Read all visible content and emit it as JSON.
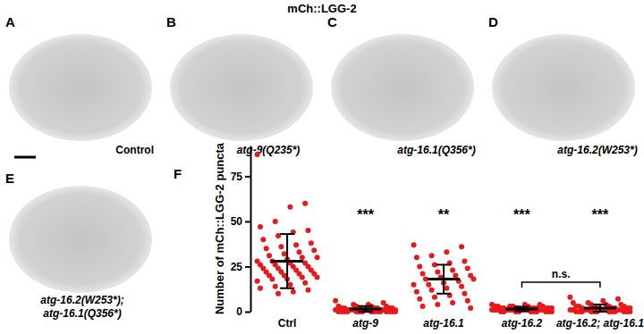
{
  "title": "mCh::LGG-2",
  "panels": [
    {
      "label": "A",
      "caption": [
        "Control"
      ]
    },
    {
      "label": "B",
      "caption": [
        "atg-9(Q235*)"
      ]
    },
    {
      "label": "C",
      "caption": [
        "atg-16.1(Q356*)"
      ]
    },
    {
      "label": "D",
      "caption": [
        "atg-16.2(W253*)"
      ]
    },
    {
      "label": "E",
      "caption": [
        "atg-16.2(W253*);",
        "atg-16.1(Q356*)"
      ]
    }
  ],
  "chart_label": "F",
  "chart_data": {
    "type": "strip",
    "y_label": "Number of mCh::LGG-2 puncta",
    "categories": [
      "Ctrl",
      "atg-9",
      "atg-16.1",
      "atg-16.2",
      "atg-16.2; atg-16.1"
    ],
    "color": "#e8191c",
    "ylim": [
      0,
      92
    ],
    "yticks": [
      0,
      25,
      50,
      75
    ],
    "values": [
      [
        87,
        60,
        58,
        50,
        47,
        45,
        44,
        42,
        40,
        38,
        37,
        36,
        35,
        34,
        33,
        32,
        31,
        30,
        30,
        29,
        28,
        28,
        27,
        27,
        26,
        26,
        25,
        25,
        24,
        24,
        23,
        23,
        22,
        22,
        21,
        21,
        20,
        20,
        19,
        19,
        18,
        18,
        17,
        16,
        15,
        14,
        13,
        12,
        11,
        10
      ],
      [
        6,
        5,
        4,
        4,
        3,
        3,
        3,
        3,
        2,
        2,
        2,
        2,
        2,
        2,
        2,
        1,
        1,
        1,
        1,
        1,
        1,
        1,
        1,
        1,
        1,
        0,
        0,
        0,
        0,
        0,
        0,
        0,
        0,
        0,
        0,
        0,
        0,
        0,
        0,
        0
      ],
      [
        37,
        36,
        33,
        31,
        30,
        28,
        27,
        26,
        25,
        24,
        23,
        22,
        21,
        20,
        20,
        19,
        18,
        18,
        17,
        16,
        15,
        15,
        14,
        13,
        12,
        11,
        10,
        9,
        8,
        7,
        6,
        5,
        4,
        3,
        2
      ],
      [
        4,
        4,
        4,
        3,
        3,
        3,
        3,
        3,
        3,
        2,
        2,
        2,
        2,
        2,
        2,
        2,
        2,
        2,
        2,
        1,
        1,
        1,
        1,
        1,
        1,
        1,
        1,
        1,
        1,
        1,
        0,
        0,
        0,
        0,
        0,
        0,
        0,
        0,
        0,
        0
      ],
      [
        8,
        7,
        6,
        5,
        5,
        4,
        4,
        4,
        3,
        3,
        3,
        3,
        3,
        2,
        2,
        2,
        2,
        2,
        2,
        1,
        1,
        1,
        1,
        1,
        1,
        1,
        1,
        1,
        0,
        0,
        0,
        0,
        0,
        0,
        0,
        0,
        0,
        0,
        0,
        0
      ]
    ],
    "mean": [
      28,
      1.5,
      18,
      1.5,
      2
    ],
    "sd": [
      15,
      1.6,
      8,
      1.2,
      2
    ],
    "annotations": [
      {
        "text": "***",
        "categories": [
          "atg-9"
        ]
      },
      {
        "text": "**",
        "categories": [
          "atg-16.1"
        ]
      },
      {
        "text": "***",
        "categories": [
          "atg-16.2"
        ]
      },
      {
        "text": "***",
        "categories": [
          "atg-16.2; atg-16.1"
        ]
      },
      {
        "text": "n.s.",
        "categories": [
          "atg-16.2",
          "atg-16.2; atg-16.1"
        ]
      }
    ]
  }
}
